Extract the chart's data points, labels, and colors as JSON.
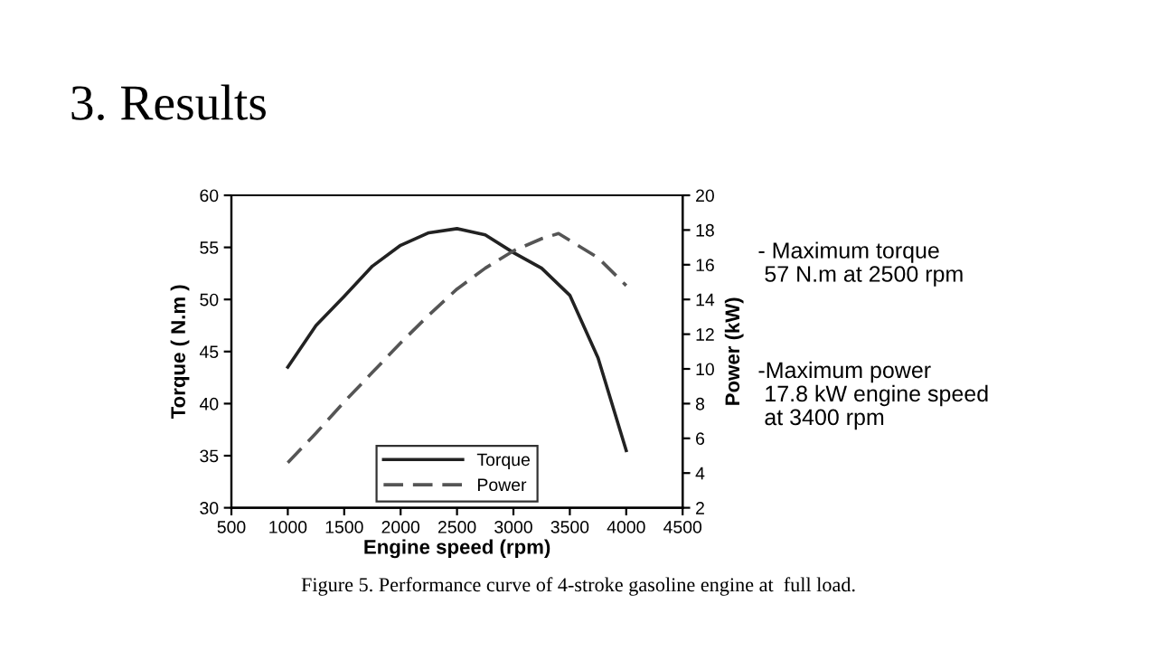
{
  "chart_data": {
    "type": "line",
    "title": "3. Results",
    "xlabel": "Engine speed (rpm)",
    "ylabel": "Torque ( N.m )",
    "y2label": "Power (kW)",
    "series": [
      {
        "name": "Torque",
        "color": "#222222",
        "line_style": "solid",
        "x": [
          1000,
          1250,
          1500,
          1750,
          2000,
          2250,
          2500,
          2750,
          3000,
          3250,
          3500,
          3750,
          4000
        ],
        "values": [
          43.5,
          47.5,
          50.3,
          53.2,
          55.2,
          56.4,
          56.8,
          56.2,
          54.5,
          53,
          50.4,
          44.4,
          35.5
        ]
      },
      {
        "name": "Power",
        "color": "#555555",
        "line_style": "dashed",
        "axis": "y2",
        "x": [
          1000,
          1250,
          1500,
          1750,
          2000,
          2250,
          2500,
          2750,
          3000,
          3250,
          3400,
          3750,
          4000
        ],
        "values": [
          4.6,
          6.3,
          8.1,
          9.8,
          11.5,
          13.1,
          14.6,
          15.8,
          16.8,
          17.5,
          17.8,
          16.4,
          14.8
        ]
      }
    ],
    "xlim": [
      500,
      4500
    ],
    "xticks": [
      500,
      1000,
      1500,
      2000,
      2500,
      3000,
      3500,
      4000,
      4500
    ],
    "ylim": [
      30,
      60
    ],
    "yticks": [
      30,
      35,
      40,
      45,
      50,
      55,
      60
    ],
    "y2lim": [
      2,
      20
    ],
    "y2ticks": [
      2,
      4,
      6,
      8,
      10,
      12,
      14,
      16,
      18,
      20
    ],
    "legend": "bottom",
    "grid": false,
    "marker": "none",
    "annotations": [
      "- Maximum torque\n 57 N.m at 2500 rpm",
      "-Maximum power\n 17.8 kW engine speed\n at 3400 rpm",
      "Figure 5. Performance curve of 4-stroke gasoline engine at  full load."
    ]
  }
}
